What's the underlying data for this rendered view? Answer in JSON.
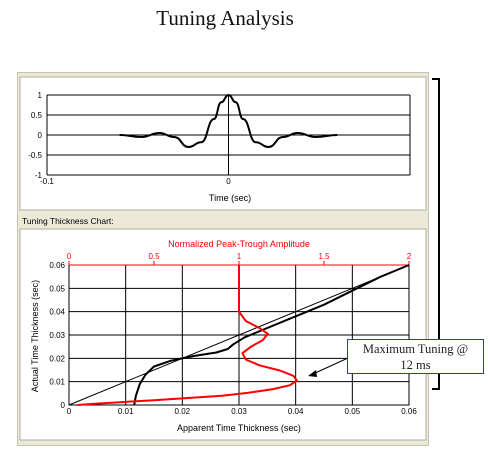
{
  "page_title": "Tuning Analysis",
  "wavelet_panel": {
    "xlabel": "Time (sec)"
  },
  "tuning_panel": {
    "header": "Tuning Thickness Chart:"
  },
  "annotation": {
    "line1": "Maximum Tuning @",
    "line2": "12 ms"
  },
  "colors": {
    "panel_bg": "#ece9d8",
    "amplitude_red": "#ff0000",
    "black": "#000000"
  },
  "chart_data": [
    {
      "type": "line",
      "title": "",
      "xlabel": "Time (sec)",
      "ylabel": "",
      "xlim": [
        -0.1,
        0.1
      ],
      "ylim": [
        -1,
        1
      ],
      "xticks": [
        -0.1,
        0
      ],
      "xtick_labels": [
        "-0.1",
        "0"
      ],
      "yticks": [
        1,
        0.5,
        0,
        -0.5,
        -1
      ],
      "ytick_labels": [
        "1",
        "0.5",
        "0",
        "-0.5",
        "-1"
      ],
      "grid": true,
      "series": [
        {
          "x": [
            -0.06,
            -0.048,
            -0.038,
            -0.03,
            -0.022,
            -0.015,
            -0.008,
            -0.004,
            0,
            0.004,
            0.008,
            0.015,
            0.022,
            0.03,
            0.038,
            0.048,
            0.06
          ],
          "y": [
            0.0,
            -0.05,
            0.05,
            -0.05,
            -0.3,
            -0.18,
            0.4,
            0.82,
            1.0,
            0.82,
            0.4,
            -0.18,
            -0.3,
            -0.05,
            0.05,
            -0.05,
            0.0
          ]
        }
      ]
    },
    {
      "type": "line",
      "title": "Normalized Peak-Trough Amplitude",
      "xlabel": "Apparent Time Thickness (sec)",
      "ylabel": "Actual Time Thickness (sec)",
      "xlim": [
        0,
        0.06
      ],
      "ylim": [
        0,
        0.06
      ],
      "xticks": [
        0,
        0.01,
        0.02,
        0.03,
        0.04,
        0.05,
        0.06
      ],
      "xtick_labels": [
        "0",
        "0.01",
        "0.02",
        "0.03",
        "0.04",
        "0.05",
        "0.06"
      ],
      "yticks": [
        0,
        0.01,
        0.02,
        0.03,
        0.04,
        0.05,
        0.06
      ],
      "ytick_labels": [
        "0",
        "0.01",
        "0.02",
        "0.03",
        "0.04",
        "0.05",
        "0.06"
      ],
      "top_axis": {
        "xlim": [
          0,
          2
        ],
        "xticks": [
          0,
          0.5,
          1,
          1.5,
          2
        ],
        "xtick_labels": [
          "0",
          "0.5",
          "1",
          "1.5",
          "2"
        ]
      },
      "grid": true,
      "series": [
        {
          "axis": "bottom",
          "color": "#000000",
          "width": 2,
          "x": [
            0.0115,
            0.0118,
            0.0125,
            0.0135,
            0.015,
            0.018,
            0.022,
            0.026,
            0.028,
            0.029,
            0.031,
            0.035,
            0.04,
            0.045,
            0.05,
            0.055,
            0.06
          ],
          "y": [
            0.0,
            0.004,
            0.009,
            0.013,
            0.0165,
            0.019,
            0.021,
            0.0225,
            0.024,
            0.026,
            0.029,
            0.033,
            0.038,
            0.043,
            0.049,
            0.055,
            0.06
          ]
        },
        {
          "axis": "bottom",
          "color": "#000000",
          "width": 1,
          "x": [
            0,
            0.06
          ],
          "y": [
            0,
            0.06
          ]
        },
        {
          "axis": "top",
          "color": "#ff0000",
          "width": 2,
          "x": [
            0.05,
            0.15,
            0.3,
            0.5,
            0.7,
            0.9,
            1.05,
            1.2,
            1.3,
            1.34,
            1.32,
            1.24,
            1.12,
            1.04,
            1.02,
            1.07,
            1.14,
            1.17,
            1.12,
            1.04,
            1.0,
            1.0
          ],
          "y": [
            0.0,
            0.0005,
            0.0012,
            0.002,
            0.003,
            0.004,
            0.0052,
            0.0068,
            0.0085,
            0.0105,
            0.0125,
            0.0148,
            0.017,
            0.0195,
            0.0222,
            0.025,
            0.0278,
            0.0305,
            0.033,
            0.036,
            0.04,
            0.06
          ]
        }
      ]
    }
  ]
}
